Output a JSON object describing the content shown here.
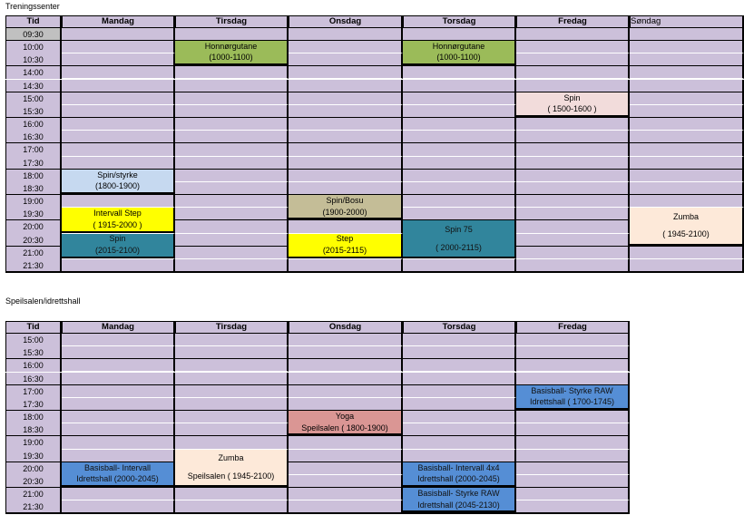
{
  "tables": [
    {
      "title": "Treningssenter",
      "headers": [
        "Tid",
        "Mandag",
        "Tirsdag",
        "Onsdag",
        "Torsdag",
        "Fredag",
        "Søndag"
      ],
      "first_time": "09:30",
      "times": [
        "10:00",
        "10:30",
        "14:00",
        "14:30",
        "15:00",
        "15:30",
        "16:00",
        "16:30",
        "17:00",
        "17:30",
        "18:00",
        "18:30",
        "19:00",
        "19:30",
        "20:00",
        "20:30",
        "21:00",
        "21:30"
      ],
      "events": [
        {
          "day": 2,
          "start": 0,
          "end": 2,
          "lines": [
            "Honnørgutane",
            "(1000-1100)"
          ],
          "color": "#9bbb59"
        },
        {
          "day": 4,
          "start": 0,
          "end": 2,
          "lines": [
            "Honnørgutane",
            "(1000-1100)"
          ],
          "color": "#9bbb59"
        },
        {
          "day": 5,
          "start": 4,
          "end": 6,
          "lines": [
            "Spin",
            "( 1500-1600 )"
          ],
          "color": "#f2dcdb"
        },
        {
          "day": 1,
          "start": 10,
          "end": 12,
          "lines": [
            "Spin/styrke",
            "(1800-1900)"
          ],
          "color": "#c6d9f0"
        },
        {
          "day": 3,
          "start": 12,
          "end": 14,
          "lines": [
            "Spin/Bosu",
            "(1900-2000)"
          ],
          "color": "#c4bd97"
        },
        {
          "day": 1,
          "start": 13,
          "end": 15,
          "lines": [
            "Intervall Step",
            "( 1915-2000 )"
          ],
          "color": "#ffff00"
        },
        {
          "day": 1,
          "start": 15,
          "end": 17,
          "lines": [
            "Spin",
            "(2015-2100)"
          ],
          "color": "#31859c"
        },
        {
          "day": 3,
          "start": 15,
          "end": 17,
          "lines": [
            "Step",
            "(2015-2115)"
          ],
          "color": "#ffff00"
        },
        {
          "day": 4,
          "start": 14,
          "end": 17,
          "lines": [
            "Spin 75",
            "( 2000-2115)"
          ],
          "color": "#31859c"
        },
        {
          "day": 6,
          "start": 13,
          "end": 16,
          "lines": [
            "Zumba",
            "( 1945-2100)"
          ],
          "color": "#fde9d9"
        }
      ]
    },
    {
      "title": "Speilsalen/idrettshall",
      "headers": [
        "Tid",
        "Mandag",
        "Tirsdag",
        "Onsdag",
        "Torsdag",
        "Fredag"
      ],
      "times": [
        "15:00",
        "15:30",
        "16:00",
        "16:30",
        "17:00",
        "17:30",
        "18:00",
        "18:30",
        "19:00",
        "19:30",
        "20:00",
        "20:30",
        "21:00",
        "21:30"
      ],
      "events": [
        {
          "day": 5,
          "start": 4,
          "end": 6,
          "lines": [
            "Basisball- Styrke RAW",
            "Idrettshall ( 1700-1745)"
          ],
          "color": "#558ed5"
        },
        {
          "day": 3,
          "start": 6,
          "end": 8,
          "lines": [
            "Yoga",
            "Speilsalen ( 1800-1900)"
          ],
          "color": "#da9694"
        },
        {
          "day": 2,
          "start": 9,
          "end": 12,
          "lines": [
            "Zumba",
            "Speilsalen ( 1945-2100)"
          ],
          "color": "#fde9d9"
        },
        {
          "day": 1,
          "start": 10,
          "end": 12,
          "lines": [
            "Basisball- Intervall",
            "Idrettshall (2000-2045)"
          ],
          "color": "#558ed5"
        },
        {
          "day": 4,
          "start": 10,
          "end": 12,
          "lines": [
            "Basisball- Intervall 4x4",
            "Idrettshall (2000-2045)"
          ],
          "color": "#558ed5"
        },
        {
          "day": 4,
          "start": 12,
          "end": 14,
          "lines": [
            "Basisball- Styrke RAW",
            "Idrettshall (2045-2130)"
          ],
          "color": "#558ed5"
        }
      ]
    }
  ]
}
